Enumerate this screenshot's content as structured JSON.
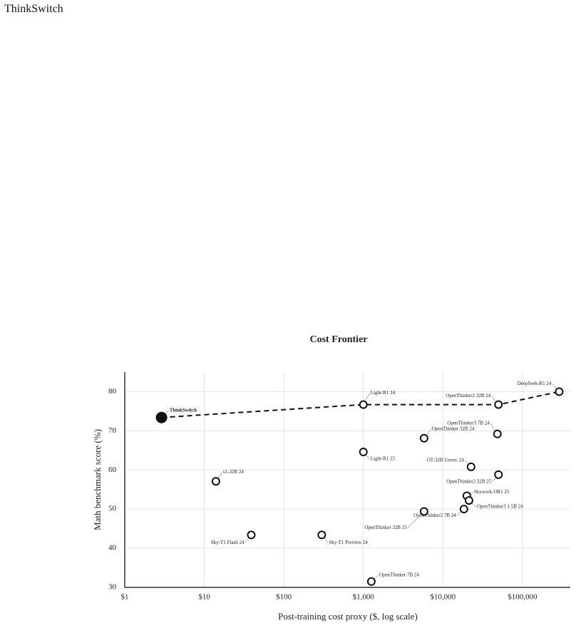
{
  "header": {
    "title": "ThinkSwitch"
  },
  "chart_data": {
    "type": "scatter",
    "title": "Cost Frontier",
    "x_label": "Post-training cost proxy ($, log scale)",
    "y_label": "Math benchmark score (%)",
    "x_log": true,
    "grid": true,
    "xlim": [
      1,
      400000
    ],
    "ylim": [
      30,
      85
    ],
    "xticks": [
      {
        "value": 1,
        "label": "$1"
      },
      {
        "value": 10,
        "label": "$10"
      },
      {
        "value": 100,
        "label": "$100"
      },
      {
        "value": 1000,
        "label": "$1,000"
      },
      {
        "value": 10000,
        "label": "$10,000"
      },
      {
        "value": 100000,
        "label": "$100,000"
      }
    ],
    "yticks": [
      30,
      40,
      50,
      60,
      70,
      80
    ],
    "point_labels": [
      "ThinkSwitch",
      "Light-R1 24",
      "OpenThinker2 32B 24",
      "DeepSeek-R1 24",
      "OpenThinker3 7B 24",
      "OpenThinker 32B 24",
      "Light-R1 25",
      "OT-32B Unver. 24",
      "OpenThinker2 32B 25",
      "s1-32B 24",
      "Skywork-OR1 25",
      "OpenThinker3 1.5B 24",
      "OpenThinker2 7B 24",
      "OpenThinker 32B 25",
      "Sky-T1 Flash 24",
      "Sky-T1 Preview 24",
      "OpenThinker 7B 24"
    ],
    "x": [
      2.9,
      1000,
      50000,
      290000,
      48500,
      5800,
      1000,
      22600,
      50000,
      14,
      20000,
      21300,
      18400,
      5800,
      39,
      300,
      1260
    ],
    "values": [
      73.4,
      76.7,
      76.7,
      80,
      69.2,
      68.1,
      64.6,
      60.8,
      58.8,
      57.1,
      53.4,
      52.2,
      50.0,
      49.4,
      43.4,
      43.4,
      31.5
    ],
    "frontier": [
      true,
      true,
      true,
      true,
      false,
      false,
      false,
      false,
      false,
      false,
      false,
      false,
      false,
      false,
      false,
      false,
      false
    ],
    "marker_colors": [
      "#111111",
      "none",
      "none",
      "none",
      "none",
      "none",
      "none",
      "none",
      "none",
      "none",
      "none",
      "none",
      "none",
      "none",
      "none",
      "none",
      "none"
    ],
    "color": "#111111"
  }
}
